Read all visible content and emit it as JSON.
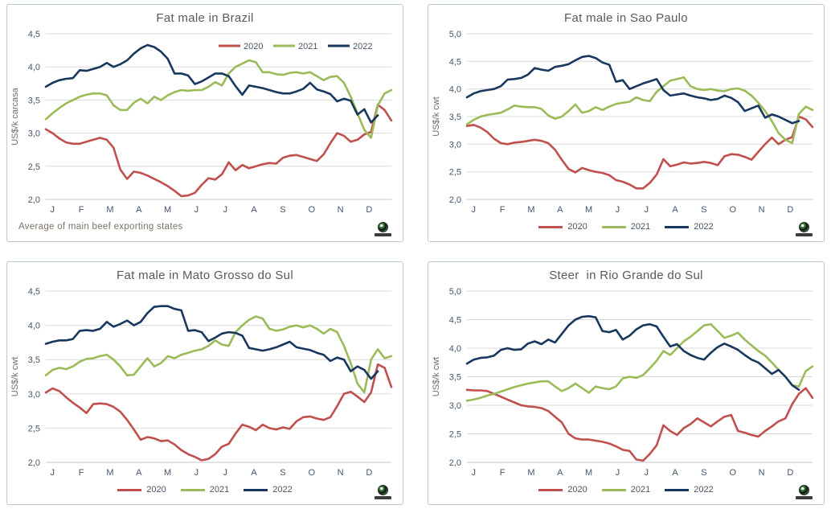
{
  "palette": {
    "red": "#C0504D",
    "green": "#9BBB59",
    "navy": "#17375E",
    "grid": "#D9D9D9",
    "axis_line": "#C6C6C6",
    "axis_text": "#44546A",
    "title_text": "#595959",
    "footnote_text": "#7B7265",
    "panel_border": "#BCC8D2"
  },
  "chart_data": [
    {
      "type": "line",
      "title": "Fat male in Brazil",
      "ylabel": "US$/k carcasa",
      "ylim": [
        2.0,
        4.5
      ],
      "grid": true,
      "legend_position": "inside-top-right",
      "footnote": "Average  of main beef exporting states",
      "x_labels": [
        "J",
        "F",
        "M",
        "A",
        "M",
        "J",
        "J",
        "A",
        "S",
        "O",
        "N",
        "D"
      ],
      "yticks": [
        {
          "value": 4.5,
          "label": "4,5"
        },
        {
          "value": 4.0,
          "label": "4,0"
        },
        {
          "value": 3.5,
          "label": "3,5"
        },
        {
          "value": 3.0,
          "label": "3,0"
        },
        {
          "value": 2.5,
          "label": "2,5"
        },
        {
          "value": 2.0,
          "label": "2,0"
        }
      ],
      "series": [
        {
          "name": "2020",
          "color": "#C0504D",
          "values": [
            3.06,
            3.0,
            2.92,
            2.86,
            2.84,
            2.84,
            2.87,
            2.9,
            2.93,
            2.9,
            2.78,
            2.45,
            2.31,
            2.42,
            2.4,
            2.36,
            2.31,
            2.26,
            2.2,
            2.13,
            2.05,
            2.06,
            2.1,
            2.22,
            2.32,
            2.3,
            2.38,
            2.56,
            2.44,
            2.52,
            2.47,
            2.5,
            2.53,
            2.55,
            2.54,
            2.63,
            2.66,
            2.67,
            2.64,
            2.61,
            2.58,
            2.68,
            2.85,
            3.0,
            2.96,
            2.87,
            2.9,
            2.98,
            3.02,
            3.43,
            3.35,
            3.19
          ]
        },
        {
          "name": "2021",
          "color": "#9BBB59",
          "values": [
            3.21,
            3.3,
            3.38,
            3.45,
            3.5,
            3.55,
            3.58,
            3.6,
            3.6,
            3.57,
            3.42,
            3.35,
            3.35,
            3.46,
            3.52,
            3.45,
            3.55,
            3.5,
            3.57,
            3.62,
            3.65,
            3.64,
            3.65,
            3.65,
            3.7,
            3.77,
            3.72,
            3.9,
            4.0,
            4.05,
            4.1,
            4.07,
            3.92,
            3.92,
            3.89,
            3.88,
            3.91,
            3.92,
            3.9,
            3.92,
            3.86,
            3.8,
            3.85,
            3.86,
            3.76,
            3.55,
            3.3,
            3.05,
            2.93,
            3.42,
            3.6,
            3.65
          ]
        },
        {
          "name": "2022",
          "color": "#17375E",
          "values": [
            3.7,
            3.76,
            3.8,
            3.82,
            3.83,
            3.95,
            3.94,
            3.97,
            4.0,
            4.06,
            4.0,
            4.04,
            4.1,
            4.2,
            4.28,
            4.33,
            4.3,
            4.23,
            4.12,
            3.9,
            3.9,
            3.87,
            3.74,
            3.78,
            3.84,
            3.9,
            3.9,
            3.86,
            3.71,
            3.58,
            3.72,
            3.7,
            3.68,
            3.65,
            3.62,
            3.6,
            3.6,
            3.63,
            3.67,
            3.76,
            3.66,
            3.63,
            3.59,
            3.48,
            3.52,
            3.49,
            3.28,
            3.36,
            3.16,
            3.27
          ]
        }
      ]
    },
    {
      "type": "line",
      "title": "Fat male in Sao Paulo",
      "ylabel": "US$/k cwt",
      "ylim": [
        2.0,
        5.0
      ],
      "grid": true,
      "legend_position": "bottom",
      "x_labels": [
        "J",
        "F",
        "M",
        "A",
        "M",
        "J",
        "J",
        "A",
        "S",
        "O",
        "N",
        "D"
      ],
      "yticks": [
        {
          "value": 5.0,
          "label": "5,0"
        },
        {
          "value": 4.5,
          "label": "4,5"
        },
        {
          "value": 4.0,
          "label": "4,0"
        },
        {
          "value": 3.5,
          "label": "3,5"
        },
        {
          "value": 3.0,
          "label": "3,0"
        },
        {
          "value": 2.5,
          "label": "2,5"
        },
        {
          "value": 2.0,
          "label": "2,0"
        }
      ],
      "series": [
        {
          "name": "2020",
          "color": "#C0504D",
          "values": [
            3.33,
            3.35,
            3.3,
            3.22,
            3.1,
            3.02,
            3.0,
            3.03,
            3.04,
            3.06,
            3.08,
            3.06,
            3.02,
            2.9,
            2.72,
            2.55,
            2.49,
            2.57,
            2.53,
            2.5,
            2.48,
            2.44,
            2.35,
            2.32,
            2.27,
            2.2,
            2.2,
            2.3,
            2.45,
            2.73,
            2.6,
            2.63,
            2.67,
            2.65,
            2.66,
            2.68,
            2.66,
            2.62,
            2.78,
            2.82,
            2.81,
            2.77,
            2.72,
            2.86,
            3.0,
            3.12,
            3.0,
            3.08,
            3.13,
            3.5,
            3.45,
            3.31
          ]
        },
        {
          "name": "2021",
          "color": "#9BBB59",
          "values": [
            3.36,
            3.44,
            3.5,
            3.53,
            3.55,
            3.57,
            3.63,
            3.7,
            3.68,
            3.67,
            3.67,
            3.64,
            3.52,
            3.46,
            3.5,
            3.6,
            3.72,
            3.57,
            3.6,
            3.67,
            3.62,
            3.68,
            3.73,
            3.75,
            3.77,
            3.85,
            3.8,
            3.78,
            3.95,
            4.05,
            4.15,
            4.18,
            4.21,
            4.05,
            4.0,
            3.98,
            4.0,
            3.97,
            3.96,
            4.0,
            4.01,
            3.97,
            3.88,
            3.75,
            3.6,
            3.42,
            3.2,
            3.08,
            3.02,
            3.55,
            3.68,
            3.62
          ]
        },
        {
          "name": "2022",
          "color": "#17375E",
          "values": [
            3.85,
            3.92,
            3.96,
            3.98,
            4.0,
            4.05,
            4.17,
            4.18,
            4.2,
            4.26,
            4.38,
            4.35,
            4.33,
            4.4,
            4.42,
            4.45,
            4.52,
            4.58,
            4.6,
            4.56,
            4.48,
            4.44,
            4.13,
            4.16,
            4.0,
            4.05,
            4.1,
            4.14,
            4.18,
            3.98,
            3.88,
            3.9,
            3.92,
            3.88,
            3.85,
            3.83,
            3.8,
            3.82,
            3.88,
            3.84,
            3.76,
            3.6,
            3.65,
            3.7,
            3.48,
            3.54,
            3.5,
            3.44,
            3.38,
            3.42
          ]
        }
      ]
    },
    {
      "type": "line",
      "title": "Fat male in Mato Grosso do Sul",
      "ylabel": "US$/k cwt",
      "ylim": [
        2.0,
        4.5
      ],
      "grid": true,
      "legend_position": "bottom",
      "x_labels": [
        "J",
        "F",
        "M",
        "A",
        "M",
        "J",
        "J",
        "A",
        "S",
        "O",
        "N",
        "D"
      ],
      "yticks": [
        {
          "value": 4.5,
          "label": "4,5"
        },
        {
          "value": 4.0,
          "label": "4,0"
        },
        {
          "value": 3.5,
          "label": "3,5"
        },
        {
          "value": 3.0,
          "label": "3,0"
        },
        {
          "value": 2.5,
          "label": "2,5"
        },
        {
          "value": 2.0,
          "label": "2,0"
        }
      ],
      "series": [
        {
          "name": "2020",
          "color": "#C0504D",
          "values": [
            3.02,
            3.08,
            3.04,
            2.95,
            2.87,
            2.8,
            2.72,
            2.85,
            2.86,
            2.85,
            2.81,
            2.74,
            2.62,
            2.48,
            2.33,
            2.37,
            2.35,
            2.31,
            2.32,
            2.26,
            2.18,
            2.12,
            2.08,
            2.03,
            2.05,
            2.12,
            2.23,
            2.27,
            2.42,
            2.55,
            2.52,
            2.47,
            2.55,
            2.5,
            2.48,
            2.51,
            2.49,
            2.6,
            2.66,
            2.67,
            2.64,
            2.62,
            2.66,
            2.82,
            3.0,
            3.03,
            2.96,
            2.88,
            3.02,
            3.43,
            3.38,
            3.1
          ]
        },
        {
          "name": "2021",
          "color": "#9BBB59",
          "values": [
            3.27,
            3.35,
            3.38,
            3.36,
            3.4,
            3.47,
            3.51,
            3.52,
            3.55,
            3.57,
            3.5,
            3.4,
            3.27,
            3.28,
            3.4,
            3.52,
            3.4,
            3.45,
            3.55,
            3.52,
            3.57,
            3.6,
            3.63,
            3.65,
            3.7,
            3.78,
            3.72,
            3.7,
            3.9,
            4.0,
            4.08,
            4.13,
            4.1,
            3.95,
            3.92,
            3.94,
            3.98,
            4.0,
            3.97,
            4.0,
            3.95,
            3.88,
            3.95,
            3.9,
            3.7,
            3.45,
            3.15,
            3.02,
            3.5,
            3.65,
            3.52,
            3.55
          ]
        },
        {
          "name": "2022",
          "color": "#17375E",
          "values": [
            3.73,
            3.76,
            3.78,
            3.78,
            3.8,
            3.92,
            3.93,
            3.92,
            3.95,
            4.05,
            3.98,
            4.02,
            4.07,
            4.0,
            4.05,
            4.18,
            4.27,
            4.28,
            4.28,
            4.24,
            4.22,
            3.92,
            3.93,
            3.9,
            3.77,
            3.82,
            3.88,
            3.9,
            3.89,
            3.85,
            3.67,
            3.65,
            3.63,
            3.65,
            3.68,
            3.72,
            3.76,
            3.68,
            3.66,
            3.64,
            3.6,
            3.57,
            3.48,
            3.53,
            3.5,
            3.33,
            3.4,
            3.35,
            3.22,
            3.33
          ]
        }
      ]
    },
    {
      "type": "line",
      "title": "Steer  in Rio Grande do Sul",
      "ylabel": "US$/k cwt",
      "ylim": [
        2.0,
        5.0
      ],
      "grid": true,
      "legend_position": "bottom",
      "x_labels": [
        "J",
        "F",
        "M",
        "A",
        "M",
        "J",
        "J",
        "A",
        "S",
        "O",
        "N",
        "D"
      ],
      "yticks": [
        {
          "value": 5.0,
          "label": "5,0"
        },
        {
          "value": 4.5,
          "label": "4,5"
        },
        {
          "value": 4.0,
          "label": "4,0"
        },
        {
          "value": 3.5,
          "label": "3,5"
        },
        {
          "value": 3.0,
          "label": "3,0"
        },
        {
          "value": 2.5,
          "label": "2,5"
        },
        {
          "value": 2.0,
          "label": "2,0"
        }
      ],
      "series": [
        {
          "name": "2020",
          "color": "#C0504D",
          "values": [
            3.27,
            3.26,
            3.26,
            3.25,
            3.2,
            3.15,
            3.1,
            3.05,
            3.0,
            2.98,
            2.97,
            2.95,
            2.9,
            2.8,
            2.7,
            2.5,
            2.42,
            2.4,
            2.4,
            2.38,
            2.36,
            2.33,
            2.28,
            2.22,
            2.2,
            2.05,
            2.03,
            2.15,
            2.3,
            2.65,
            2.55,
            2.48,
            2.6,
            2.67,
            2.77,
            2.7,
            2.63,
            2.72,
            2.8,
            2.83,
            2.55,
            2.52,
            2.48,
            2.45,
            2.55,
            2.63,
            2.72,
            2.77,
            3.02,
            3.2,
            3.3,
            3.13
          ]
        },
        {
          "name": "2021",
          "color": "#9BBB59",
          "values": [
            3.08,
            3.1,
            3.13,
            3.17,
            3.2,
            3.24,
            3.28,
            3.32,
            3.35,
            3.38,
            3.4,
            3.42,
            3.42,
            3.33,
            3.25,
            3.3,
            3.38,
            3.3,
            3.22,
            3.33,
            3.3,
            3.28,
            3.33,
            3.47,
            3.5,
            3.48,
            3.53,
            3.65,
            3.78,
            3.95,
            3.88,
            4.0,
            4.12,
            4.2,
            4.3,
            4.4,
            4.42,
            4.3,
            4.18,
            4.22,
            4.27,
            4.15,
            4.05,
            3.95,
            3.87,
            3.75,
            3.62,
            3.5,
            3.35,
            3.33,
            3.6,
            3.68
          ]
        },
        {
          "name": "2022",
          "color": "#17375E",
          "values": [
            3.73,
            3.8,
            3.83,
            3.84,
            3.87,
            3.97,
            4.0,
            3.97,
            3.98,
            4.08,
            4.12,
            4.07,
            4.15,
            4.1,
            4.25,
            4.4,
            4.5,
            4.55,
            4.56,
            4.54,
            4.3,
            4.28,
            4.32,
            4.15,
            4.22,
            4.33,
            4.4,
            4.42,
            4.38,
            4.2,
            4.03,
            4.07,
            3.95,
            3.88,
            3.83,
            3.8,
            3.92,
            4.02,
            4.08,
            4.03,
            3.97,
            3.88,
            3.8,
            3.75,
            3.65,
            3.55,
            3.62,
            3.5,
            3.35,
            3.27
          ]
        }
      ]
    }
  ]
}
